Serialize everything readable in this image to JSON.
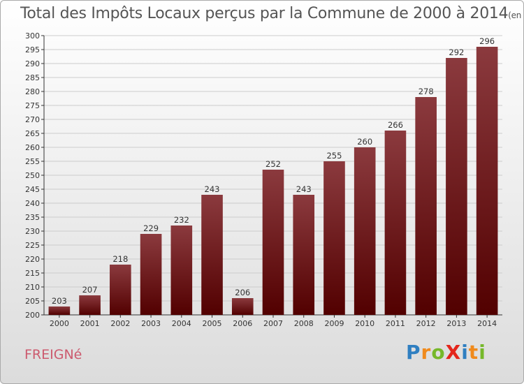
{
  "title": "Total des Impôts Locaux perçus par la Commune de 2000 à 2014",
  "unit_note": "(en milliers d'€)",
  "commune": "FREIGNé",
  "logo": {
    "letters": [
      {
        "ch": "P",
        "color": "#2f7fc1"
      },
      {
        "ch": "r",
        "color": "#f08a1c"
      },
      {
        "ch": "o",
        "color": "#76b82a"
      },
      {
        "ch": "X",
        "color": "#e4261c"
      },
      {
        "ch": "i",
        "color": "#2f7fc1"
      },
      {
        "ch": "t",
        "color": "#f08a1c"
      },
      {
        "ch": "i",
        "color": "#76b82a"
      }
    ]
  },
  "colors": {
    "bar_top": "#8b3a3e",
    "bar_bottom": "#520000",
    "grid": "#cccccc",
    "axis": "#333333"
  },
  "chart_data": {
    "type": "bar",
    "title": "Total des Impôts Locaux perçus par la Commune de 2000 à 2014",
    "ylabel": "en milliers d'€",
    "categories": [
      "2000",
      "2001",
      "2002",
      "2003",
      "2004",
      "2005",
      "2006",
      "2007",
      "2008",
      "2009",
      "2010",
      "2011",
      "2012",
      "2013",
      "2014"
    ],
    "values": [
      203,
      207,
      218,
      229,
      232,
      243,
      206,
      252,
      243,
      255,
      260,
      266,
      278,
      292,
      296
    ],
    "ylim": [
      200,
      300
    ],
    "yticks": [
      200,
      205,
      210,
      215,
      220,
      225,
      230,
      235,
      240,
      245,
      250,
      255,
      260,
      265,
      270,
      275,
      280,
      285,
      290,
      295,
      300
    ],
    "grid": true
  }
}
